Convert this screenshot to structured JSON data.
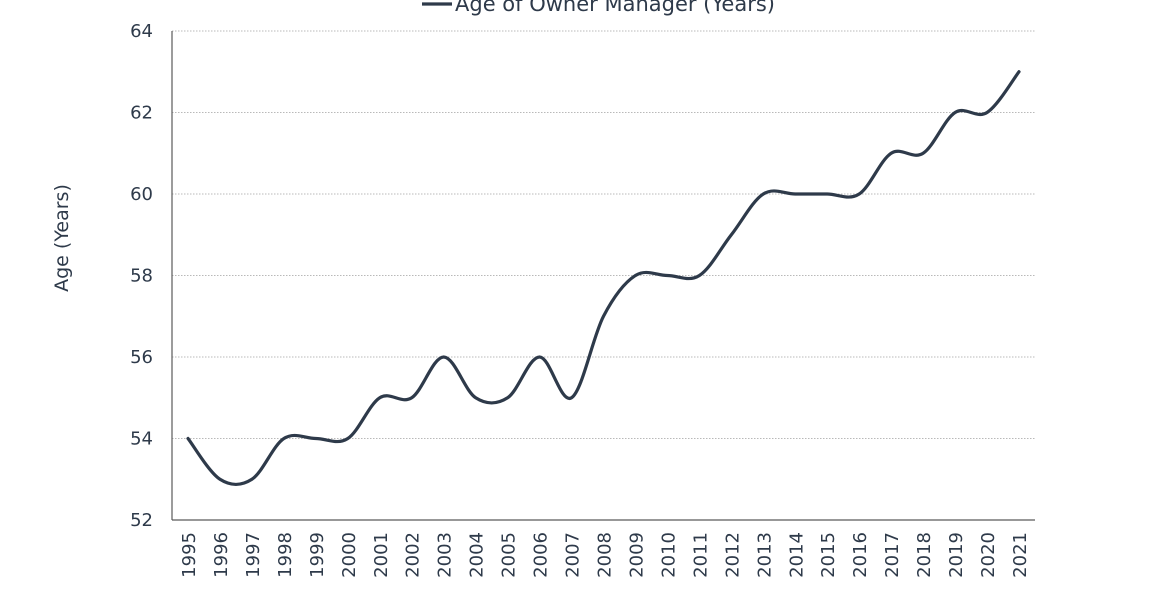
{
  "chart_data": {
    "type": "line",
    "title": "",
    "xlabel": "",
    "ylabel": "Age (Years)",
    "ylim": [
      52,
      64
    ],
    "yticks": [
      52,
      54,
      56,
      58,
      60,
      62,
      64
    ],
    "grid": true,
    "legend_position": "top",
    "x": [
      "1995",
      "1996",
      "1997",
      "1998",
      "1999",
      "2000",
      "2001",
      "2002",
      "2003",
      "2004",
      "2005",
      "2006",
      "2007",
      "2008",
      "2009",
      "2010",
      "2011",
      "2012",
      "2013",
      "2014",
      "2015",
      "2016",
      "2017",
      "2018",
      "2019",
      "2020",
      "2021"
    ],
    "series": [
      {
        "name": "Age of Owner Manager (Years)",
        "color": "#2e3a4a",
        "values": [
          54,
          53,
          53,
          54,
          54,
          54,
          55,
          55,
          56,
          55,
          55,
          56,
          55,
          57,
          58,
          58,
          58,
          59,
          60,
          60,
          60,
          60,
          61,
          61,
          62,
          62,
          63
        ]
      }
    ]
  }
}
